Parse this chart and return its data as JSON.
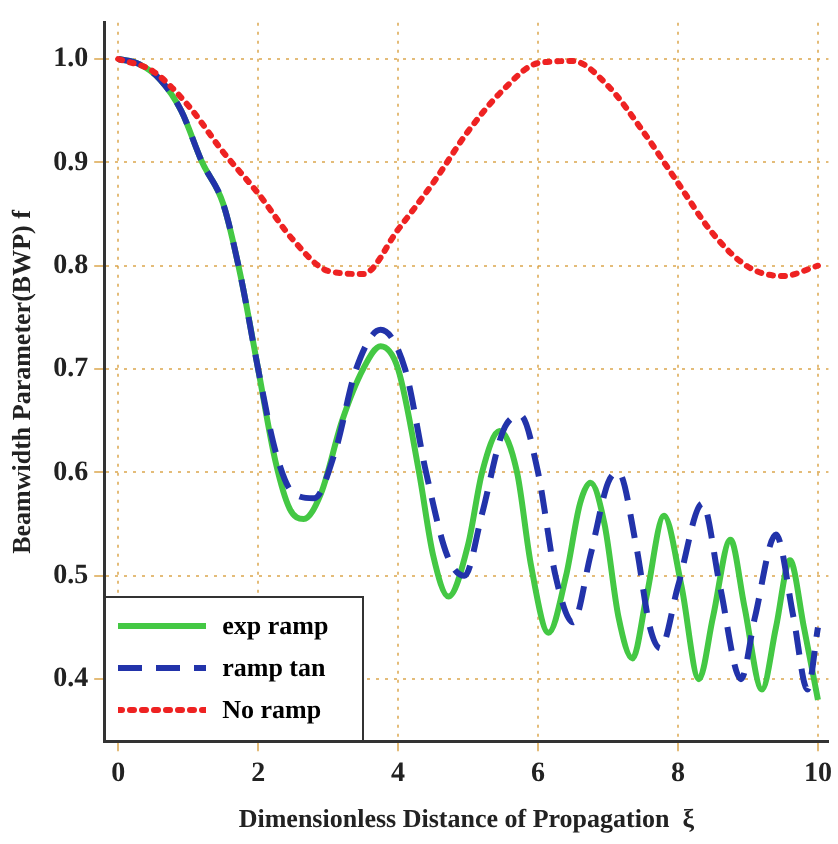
{
  "chart_data": {
    "type": "line",
    "xlabel": "Dimensionless Distance of Propagation  ξ",
    "ylabel": "Beamwidth Parameter(BWP) f",
    "xlim": [
      -0.2,
      10.15
    ],
    "ylim": [
      0.34,
      1.035
    ],
    "xticks": [
      0,
      2,
      4,
      6,
      8,
      10
    ],
    "yticks": [
      0.4,
      0.5,
      0.6,
      0.7,
      0.8,
      0.9,
      {
        "value": 1,
        "label": "1.0"
      }
    ],
    "grid": true,
    "legend": "bottom left",
    "marker": "none",
    "series": [
      {
        "name": "exp ramp",
        "color": "#44c844",
        "line_style": "solid",
        "x": [
          0,
          0.3,
          0.6,
          0.9,
          1.2,
          1.5,
          1.75,
          2,
          2.25,
          2.45,
          2.65,
          2.9,
          3.2,
          3.5,
          3.75,
          4,
          4.3,
          4.5,
          4.72,
          5,
          5.2,
          5.45,
          5.7,
          5.9,
          6.15,
          6.4,
          6.6,
          6.75,
          6.95,
          7.15,
          7.35,
          7.55,
          7.8,
          8.05,
          8.3,
          8.5,
          8.75,
          8.95,
          9.2,
          9.4,
          9.6,
          9.8,
          10
        ],
        "values": [
          1,
          0.995,
          0.98,
          0.95,
          0.9,
          0.86,
          0.79,
          0.7,
          0.61,
          0.565,
          0.555,
          0.58,
          0.65,
          0.7,
          0.722,
          0.7,
          0.6,
          0.52,
          0.48,
          0.53,
          0.6,
          0.64,
          0.6,
          0.51,
          0.445,
          0.5,
          0.57,
          0.59,
          0.55,
          0.46,
          0.42,
          0.48,
          0.558,
          0.49,
          0.4,
          0.46,
          0.535,
          0.47,
          0.39,
          0.45,
          0.515,
          0.45,
          0.38
        ]
      },
      {
        "name": "ramp tan",
        "color": "#2233aa",
        "line_style": "dashed",
        "x": [
          0,
          0.3,
          0.6,
          0.9,
          1.2,
          1.5,
          1.75,
          2,
          2.25,
          2.5,
          2.8,
          3.1,
          3.4,
          3.75,
          4.1,
          4.4,
          4.7,
          4.95,
          5.2,
          5.5,
          5.75,
          6,
          6.25,
          6.5,
          6.75,
          7,
          7.15,
          7.4,
          7.6,
          7.75,
          8,
          8.35,
          8.6,
          8.9,
          9.1,
          9.4,
          9.65,
          9.85,
          10
        ],
        "values": [
          1,
          0.995,
          0.98,
          0.95,
          0.9,
          0.86,
          0.79,
          0.7,
          0.62,
          0.58,
          0.575,
          0.62,
          0.7,
          0.738,
          0.7,
          0.6,
          0.52,
          0.5,
          0.56,
          0.64,
          0.655,
          0.6,
          0.5,
          0.455,
          0.52,
          0.59,
          0.6,
          0.53,
          0.45,
          0.43,
          0.49,
          0.57,
          0.49,
          0.4,
          0.46,
          0.54,
          0.46,
          0.39,
          0.45
        ]
      },
      {
        "name": "No ramp",
        "color": "#ee2222",
        "line_style": "dotted",
        "x": [
          0,
          0.5,
          1,
          1.5,
          2,
          2.5,
          3,
          3.5,
          4,
          4.5,
          5,
          5.5,
          6,
          6.5,
          7,
          7.5,
          8,
          8.5,
          9,
          9.5,
          10
        ],
        "values": [
          1,
          0.988,
          0.955,
          0.91,
          0.87,
          0.825,
          0.795,
          0.792,
          0.835,
          0.88,
          0.93,
          0.97,
          0.996,
          0.998,
          0.974,
          0.93,
          0.88,
          0.831,
          0.799,
          0.79,
          0.8
        ]
      }
    ]
  }
}
